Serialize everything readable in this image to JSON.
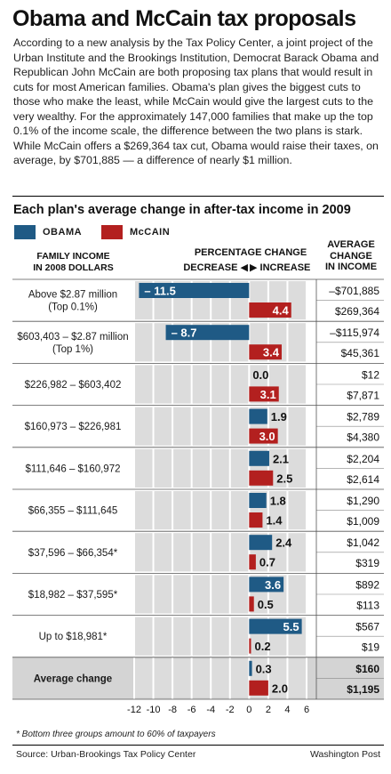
{
  "title": "Obama and McCain tax proposals",
  "intro": "According to a new analysis by the Tax Policy Center, a joint project of the Urban Institute and the Brookings Institution, Democrat Barack Obama and Republican John McCain are both proposing tax plans that would result in cuts for most American families. Obama's plan gives the biggest cuts to those who make the least, while McCain would give the largest cuts to the very wealthy. For the approximately 147,000 families that make up the top 0.1% of the income scale, the difference between the two plans is stark. While McCain offers a $269,364 tax cut, Obama would raise their taxes, on average, by $701,885 — a difference of nearly $1 million.",
  "chart_data": {
    "type": "bar",
    "title": "Each plan's average change in after-tax income in 2009",
    "legend": [
      {
        "name": "OBAMA",
        "color": "#1f5a85"
      },
      {
        "name": "McCAIN",
        "color": "#b3201f"
      }
    ],
    "headers": {
      "family_income": "FAMILY INCOME\nIN 2008 DOLLARS",
      "pct_change": "PERCENTAGE CHANGE",
      "decrease": "DECREASE",
      "increase": "INCREASE",
      "avg_change": "AVERAGE\nCHANGE\nIN INCOME"
    },
    "xlim": [
      -12,
      6
    ],
    "x_ticks": [
      "-12",
      "-10",
      "-8",
      "-6",
      "-4",
      "-2",
      "0",
      "2",
      "4",
      "6"
    ],
    "categories": [
      "Above $2.87 million\n(Top 0.1%)",
      "$603,403 – $2.87 million\n(Top 1%)",
      "$226,982 – $603,402",
      "$160,973 – $226,981",
      "$111,646 – $160,972",
      "$66,355 – $111,645",
      "$37,596 – $66,354*",
      "$18,982 – $37,595*",
      "Up to $18,981*",
      "Average change"
    ],
    "series": [
      {
        "name": "OBAMA",
        "values": [
          -11.5,
          -8.7,
          0.0,
          1.9,
          2.1,
          1.8,
          2.4,
          3.6,
          5.5,
          0.3
        ],
        "labels": [
          "– 11.5",
          "– 8.7",
          "0.0",
          "1.9",
          "2.1",
          "1.8",
          "2.4",
          "3.6",
          "5.5",
          "0.3"
        ],
        "dollars": [
          "–$701,885",
          "–$115,974",
          "$12",
          "$2,789",
          "$2,204",
          "$1,290",
          "$1,042",
          "$892",
          "$567",
          "$160"
        ]
      },
      {
        "name": "McCAIN",
        "values": [
          4.4,
          3.4,
          3.1,
          3.0,
          2.5,
          1.4,
          0.7,
          0.5,
          0.2,
          2.0
        ],
        "labels": [
          "4.4",
          "3.4",
          "3.1",
          "3.0",
          "2.5",
          "1.4",
          "0.7",
          "0.5",
          "0.2",
          "2.0"
        ],
        "dollars": [
          "$269,364",
          "$45,361",
          "$7,871",
          "$4,380",
          "$2,614",
          "$1,009",
          "$319",
          "$113",
          "$19",
          "$1,195"
        ]
      }
    ],
    "grid": true
  },
  "footnote": "* Bottom three groups amount to 60% of taxpayers",
  "source": "Source: Urban-Brookings Tax Policy Center",
  "credit": "Washington Post"
}
